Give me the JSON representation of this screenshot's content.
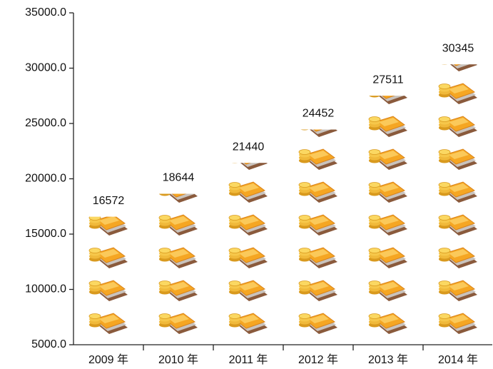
{
  "chart_data": {
    "type": "pictograph",
    "categories": [
      "2009 年",
      "2010 年",
      "2011 年",
      "2012 年",
      "2013 年",
      "2014 年"
    ],
    "values": [
      16572,
      18644,
      21440,
      24452,
      27511,
      30345
    ],
    "ylim": [
      5000,
      35000
    ],
    "yticks": [
      {
        "value": 5000,
        "label": "5000.0"
      },
      {
        "value": 10000,
        "label": "10000.0"
      },
      {
        "value": 15000,
        "label": "15000.0"
      },
      {
        "value": 20000,
        "label": "20000.0"
      },
      {
        "value": 25000,
        "label": "25000.0"
      },
      {
        "value": 30000,
        "label": "30000.0"
      },
      {
        "value": 35000,
        "label": "35000.0"
      }
    ],
    "color": "#f2a93b"
  }
}
